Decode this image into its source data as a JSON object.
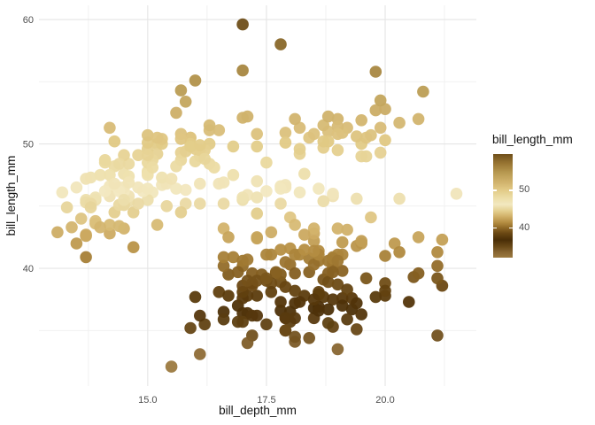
{
  "figure": {
    "background": "#ffffff",
    "colors": {
      "grid_major": "#e5e5e5",
      "grid_minor": "#f1f1f1",
      "axis_text": "#4d4d4d",
      "title_text": "#111111"
    }
  },
  "chart_data": {
    "type": "scatter",
    "title": "",
    "xlabel": "bill_depth_mm",
    "ylabel": "bill_length_mm",
    "xlim": [
      12.71,
      21.92
    ],
    "ylim": [
      30.54,
      61.14
    ],
    "x_ticks": [
      15.0,
      17.5,
      20.0
    ],
    "x_tick_labels": [
      "15.0",
      "17.5",
      "20.0"
    ],
    "y_ticks": [
      40,
      50,
      60
    ],
    "y_tick_labels": [
      "40",
      "50",
      "60"
    ],
    "x_minor_ticks": [
      13.75,
      16.25,
      18.75,
      21.25
    ],
    "y_minor_ticks": [
      35,
      45,
      55
    ],
    "grid": true,
    "point_radius": 6.8,
    "point_opacity": 0.95,
    "legend": {
      "title": "bill_length_mm",
      "position": "right",
      "range": [
        32.1,
        59.6
      ],
      "ticks": [
        50,
        40
      ],
      "tick_labels": [
        "50",
        "40"
      ]
    },
    "color_scale": {
      "field": "bill_length_mm",
      "stops": [
        [
          32.1,
          "#9c7a40"
        ],
        [
          33.5,
          "#886632"
        ],
        [
          35.0,
          "#6a4a18"
        ],
        [
          36.8,
          "#4a2e07"
        ],
        [
          38.5,
          "#684612"
        ],
        [
          40.0,
          "#8f6826"
        ],
        [
          41.5,
          "#b68f43"
        ],
        [
          43.0,
          "#d0af67"
        ],
        [
          44.5,
          "#e4cf8f"
        ],
        [
          46.2,
          "#f2e8c0"
        ],
        [
          48.0,
          "#ecdda6"
        ],
        [
          50.0,
          "#e2cb87"
        ],
        [
          52.0,
          "#d2b46e"
        ],
        [
          54.5,
          "#b99b52"
        ],
        [
          57.0,
          "#9a7734"
        ],
        [
          59.6,
          "#6f4f1a"
        ]
      ]
    },
    "series_note": "points are [bill_depth_mm, bill_length_mm]; color encodes bill_length_mm",
    "points": [
      [
        18.7,
        39.1
      ],
      [
        17.4,
        39.5
      ],
      [
        18.0,
        40.3
      ],
      [
        19.3,
        36.7
      ],
      [
        20.6,
        39.3
      ],
      [
        17.8,
        38.9
      ],
      [
        19.6,
        39.2
      ],
      [
        18.1,
        34.1
      ],
      [
        20.2,
        42.0
      ],
      [
        17.1,
        37.8
      ],
      [
        17.3,
        37.8
      ],
      [
        17.6,
        41.1
      ],
      [
        21.2,
        38.6
      ],
      [
        21.1,
        34.6
      ],
      [
        17.8,
        36.6
      ],
      [
        19.0,
        38.7
      ],
      [
        20.7,
        42.5
      ],
      [
        18.4,
        34.4
      ],
      [
        21.5,
        46.0
      ],
      [
        18.3,
        37.8
      ],
      [
        18.7,
        37.7
      ],
      [
        19.2,
        35.9
      ],
      [
        18.1,
        38.2
      ],
      [
        17.2,
        38.8
      ],
      [
        18.9,
        35.3
      ],
      [
        18.6,
        40.6
      ],
      [
        17.9,
        40.5
      ],
      [
        18.6,
        37.9
      ],
      [
        18.9,
        40.5
      ],
      [
        16.7,
        39.5
      ],
      [
        18.1,
        37.2
      ],
      [
        17.8,
        39.5
      ],
      [
        18.9,
        40.9
      ],
      [
        17.0,
        36.4
      ],
      [
        21.1,
        39.2
      ],
      [
        20.0,
        38.8
      ],
      [
        18.5,
        42.2
      ],
      [
        19.3,
        37.6
      ],
      [
        19.1,
        39.8
      ],
      [
        18.0,
        36.5
      ],
      [
        18.4,
        40.8
      ],
      [
        18.5,
        36.0
      ],
      [
        19.7,
        44.1
      ],
      [
        16.9,
        37.0
      ],
      [
        18.8,
        39.6
      ],
      [
        19.0,
        41.1
      ],
      [
        18.9,
        37.5
      ],
      [
        17.9,
        36.0
      ],
      [
        21.2,
        42.3
      ],
      [
        17.7,
        39.6
      ],
      [
        18.9,
        40.1
      ],
      [
        17.9,
        35.0
      ],
      [
        19.5,
        42.0
      ],
      [
        18.1,
        34.5
      ],
      [
        18.6,
        41.4
      ],
      [
        17.5,
        39.0
      ],
      [
        18.8,
        40.6
      ],
      [
        16.6,
        36.5
      ],
      [
        19.1,
        37.6
      ],
      [
        16.9,
        35.7
      ],
      [
        21.1,
        41.3
      ],
      [
        17.0,
        37.6
      ],
      [
        18.2,
        41.1
      ],
      [
        17.1,
        36.4
      ],
      [
        18.0,
        41.6
      ],
      [
        16.2,
        35.5
      ],
      [
        19.1,
        41.1
      ],
      [
        16.6,
        35.9
      ],
      [
        19.4,
        41.8
      ],
      [
        19.0,
        33.5
      ],
      [
        18.4,
        39.7
      ],
      [
        17.2,
        39.6
      ],
      [
        18.9,
        45.8
      ],
      [
        17.5,
        35.5
      ],
      [
        18.5,
        42.8
      ],
      [
        16.8,
        40.9
      ],
      [
        19.4,
        37.2
      ],
      [
        16.1,
        36.2
      ],
      [
        19.1,
        42.1
      ],
      [
        17.2,
        34.6
      ],
      [
        17.6,
        42.9
      ],
      [
        18.8,
        36.7
      ],
      [
        19.4,
        35.1
      ],
      [
        17.8,
        37.3
      ],
      [
        20.3,
        41.3
      ],
      [
        19.5,
        36.3
      ],
      [
        18.6,
        36.9
      ],
      [
        19.2,
        38.3
      ],
      [
        18.8,
        38.9
      ],
      [
        18.0,
        35.7
      ],
      [
        18.1,
        41.1
      ],
      [
        17.1,
        34.0
      ],
      [
        18.1,
        39.6
      ],
      [
        17.3,
        36.2
      ],
      [
        18.9,
        40.8
      ],
      [
        18.6,
        38.1
      ],
      [
        18.5,
        40.3
      ],
      [
        16.1,
        33.1
      ],
      [
        18.5,
        43.2
      ],
      [
        17.9,
        35.0
      ],
      [
        20.0,
        41.0
      ],
      [
        16.0,
        37.7
      ],
      [
        20.0,
        37.8
      ],
      [
        18.6,
        37.9
      ],
      [
        18.9,
        39.7
      ],
      [
        17.2,
        38.6
      ],
      [
        20.0,
        38.2
      ],
      [
        17.0,
        38.1
      ],
      [
        19.0,
        43.2
      ],
      [
        16.5,
        38.1
      ],
      [
        20.3,
        45.6
      ],
      [
        17.7,
        39.7
      ],
      [
        19.5,
        42.2
      ],
      [
        20.7,
        39.6
      ],
      [
        18.3,
        42.7
      ],
      [
        17.0,
        38.6
      ],
      [
        20.5,
        37.3
      ],
      [
        17.0,
        35.7
      ],
      [
        18.6,
        41.1
      ],
      [
        17.2,
        36.2
      ],
      [
        19.8,
        37.7
      ],
      [
        17.0,
        40.2
      ],
      [
        18.5,
        41.4
      ],
      [
        15.9,
        35.2
      ],
      [
        19.0,
        40.6
      ],
      [
        17.6,
        38.8
      ],
      [
        18.3,
        41.5
      ],
      [
        17.1,
        39.0
      ],
      [
        18.0,
        44.1
      ],
      [
        17.9,
        38.5
      ],
      [
        19.2,
        43.1
      ],
      [
        18.5,
        36.8
      ],
      [
        18.5,
        37.5
      ],
      [
        17.6,
        38.1
      ],
      [
        17.5,
        41.1
      ],
      [
        18.8,
        35.6
      ],
      [
        16.6,
        40.2
      ],
      [
        19.1,
        37.0
      ],
      [
        16.9,
        39.7
      ],
      [
        21.1,
        40.2
      ],
      [
        17.0,
        40.6
      ],
      [
        15.5,
        32.1
      ],
      [
        17.1,
        40.7
      ],
      [
        18.2,
        37.3
      ],
      [
        17.3,
        39.0
      ],
      [
        17.5,
        39.2
      ],
      [
        18.6,
        36.6
      ],
      [
        17.9,
        36.0
      ],
      [
        16.7,
        37.8
      ],
      [
        18.1,
        36.0
      ],
      [
        17.8,
        41.5
      ],
      [
        13.2,
        46.1
      ],
      [
        16.3,
        50.0
      ],
      [
        14.1,
        48.7
      ],
      [
        15.2,
        50.0
      ],
      [
        14.5,
        47.6
      ],
      [
        13.5,
        46.5
      ],
      [
        14.6,
        45.4
      ],
      [
        15.3,
        46.7
      ],
      [
        13.4,
        43.3
      ],
      [
        15.4,
        46.8
      ],
      [
        13.7,
        40.9
      ],
      [
        16.1,
        49.0
      ],
      [
        13.7,
        45.5
      ],
      [
        14.6,
        48.4
      ],
      [
        14.6,
        45.8
      ],
      [
        15.7,
        49.3
      ],
      [
        13.5,
        42.0
      ],
      [
        15.2,
        49.2
      ],
      [
        14.5,
        46.2
      ],
      [
        15.1,
        48.7
      ],
      [
        14.3,
        50.2
      ],
      [
        14.5,
        45.1
      ],
      [
        14.5,
        46.5
      ],
      [
        15.8,
        46.3
      ],
      [
        13.1,
        42.9
      ],
      [
        15.1,
        46.1
      ],
      [
        14.3,
        44.5
      ],
      [
        15.0,
        47.8
      ],
      [
        14.3,
        48.2
      ],
      [
        15.3,
        50.0
      ],
      [
        15.3,
        47.3
      ],
      [
        14.2,
        42.8
      ],
      [
        14.5,
        45.1
      ],
      [
        17.0,
        59.6
      ],
      [
        14.8,
        49.1
      ],
      [
        16.3,
        48.4
      ],
      [
        13.7,
        42.6
      ],
      [
        17.3,
        44.4
      ],
      [
        13.6,
        44.0
      ],
      [
        15.7,
        48.7
      ],
      [
        13.7,
        42.7
      ],
      [
        16.0,
        49.6
      ],
      [
        13.7,
        45.3
      ],
      [
        15.0,
        49.6
      ],
      [
        15.9,
        50.5
      ],
      [
        13.9,
        43.6
      ],
      [
        13.9,
        45.5
      ],
      [
        15.9,
        50.5
      ],
      [
        13.3,
        44.9
      ],
      [
        15.8,
        45.2
      ],
      [
        14.2,
        46.6
      ],
      [
        14.1,
        48.5
      ],
      [
        14.4,
        45.1
      ],
      [
        15.0,
        50.1
      ],
      [
        14.4,
        46.5
      ],
      [
        15.4,
        45.0
      ],
      [
        13.9,
        43.8
      ],
      [
        15.0,
        45.5
      ],
      [
        14.5,
        43.2
      ],
      [
        15.3,
        50.4
      ],
      [
        13.8,
        45.3
      ],
      [
        14.9,
        46.2
      ],
      [
        13.9,
        45.7
      ],
      [
        15.7,
        54.3
      ],
      [
        14.2,
        45.8
      ],
      [
        16.8,
        49.8
      ],
      [
        14.4,
        46.2
      ],
      [
        16.2,
        49.5
      ],
      [
        14.2,
        43.5
      ],
      [
        15.0,
        50.7
      ],
      [
        15.0,
        47.7
      ],
      [
        15.6,
        46.4
      ],
      [
        15.6,
        48.2
      ],
      [
        14.8,
        46.5
      ],
      [
        15.0,
        46.4
      ],
      [
        16.0,
        48.6
      ],
      [
        14.2,
        47.5
      ],
      [
        16.3,
        51.1
      ],
      [
        13.8,
        45.2
      ],
      [
        16.1,
        45.2
      ],
      [
        14.5,
        49.1
      ],
      [
        15.6,
        52.5
      ],
      [
        14.6,
        47.4
      ],
      [
        15.9,
        50.0
      ],
      [
        13.8,
        44.9
      ],
      [
        17.3,
        50.8
      ],
      [
        14.4,
        43.4
      ],
      [
        14.2,
        51.3
      ],
      [
        14.0,
        47.5
      ],
      [
        17.0,
        52.1
      ],
      [
        15.0,
        47.5
      ],
      [
        17.1,
        52.2
      ],
      [
        14.5,
        45.5
      ],
      [
        16.1,
        49.5
      ],
      [
        14.7,
        44.5
      ],
      [
        15.7,
        50.8
      ],
      [
        15.8,
        49.4
      ],
      [
        14.6,
        46.9
      ],
      [
        14.4,
        48.4
      ],
      [
        16.5,
        51.1
      ],
      [
        15.0,
        48.5
      ],
      [
        17.0,
        55.9
      ],
      [
        15.5,
        47.2
      ],
      [
        15.0,
        49.1
      ],
      [
        13.8,
        47.3
      ],
      [
        16.1,
        46.8
      ],
      [
        14.7,
        41.7
      ],
      [
        15.8,
        53.4
      ],
      [
        14.0,
        43.3
      ],
      [
        15.1,
        48.1
      ],
      [
        15.2,
        50.5
      ],
      [
        15.9,
        49.8
      ],
      [
        15.2,
        43.5
      ],
      [
        16.3,
        51.5
      ],
      [
        14.1,
        46.2
      ],
      [
        16.0,
        55.1
      ],
      [
        15.7,
        44.5
      ],
      [
        16.2,
        48.8
      ],
      [
        13.7,
        47.2
      ],
      [
        14.3,
        46.8
      ],
      [
        15.7,
        50.4
      ],
      [
        14.8,
        45.2
      ],
      [
        16.1,
        49.9
      ],
      [
        17.9,
        46.5
      ],
      [
        19.5,
        50.0
      ],
      [
        19.2,
        51.3
      ],
      [
        18.7,
        45.4
      ],
      [
        19.8,
        52.7
      ],
      [
        17.8,
        45.2
      ],
      [
        18.2,
        46.1
      ],
      [
        18.2,
        51.3
      ],
      [
        18.9,
        46.0
      ],
      [
        19.9,
        51.3
      ],
      [
        17.8,
        46.6
      ],
      [
        20.3,
        51.7
      ],
      [
        17.3,
        47.0
      ],
      [
        18.1,
        52.0
      ],
      [
        17.1,
        45.9
      ],
      [
        19.6,
        50.5
      ],
      [
        20.0,
        50.3
      ],
      [
        17.8,
        58.0
      ],
      [
        18.6,
        46.4
      ],
      [
        18.2,
        49.2
      ],
      [
        17.3,
        42.4
      ],
      [
        17.5,
        48.5
      ],
      [
        16.6,
        43.2
      ],
      [
        19.4,
        50.6
      ],
      [
        17.9,
        46.7
      ],
      [
        19.0,
        52.0
      ],
      [
        18.4,
        50.5
      ],
      [
        19.0,
        49.5
      ],
      [
        17.8,
        46.4
      ],
      [
        20.0,
        52.8
      ],
      [
        16.6,
        40.9
      ],
      [
        20.8,
        54.2
      ],
      [
        16.7,
        42.5
      ],
      [
        18.8,
        51.0
      ],
      [
        18.7,
        49.7
      ],
      [
        16.8,
        47.5
      ],
      [
        18.3,
        47.6
      ],
      [
        20.7,
        52.0
      ],
      [
        16.6,
        46.9
      ],
      [
        19.9,
        53.5
      ],
      [
        19.5,
        49.0
      ],
      [
        17.5,
        46.2
      ],
      [
        19.1,
        50.9
      ],
      [
        17.0,
        45.5
      ],
      [
        17.9,
        50.9
      ],
      [
        18.5,
        50.8
      ],
      [
        17.9,
        50.1
      ],
      [
        19.6,
        49.0
      ],
      [
        18.7,
        51.5
      ],
      [
        17.3,
        49.8
      ],
      [
        16.4,
        48.1
      ],
      [
        19.0,
        51.4
      ],
      [
        17.3,
        45.7
      ],
      [
        19.7,
        50.7
      ],
      [
        17.3,
        42.5
      ],
      [
        18.8,
        52.2
      ],
      [
        16.6,
        45.2
      ],
      [
        19.9,
        49.3
      ],
      [
        18.8,
        50.2
      ],
      [
        19.4,
        45.6
      ],
      [
        19.5,
        51.9
      ],
      [
        16.5,
        46.8
      ],
      [
        17.0,
        45.7
      ],
      [
        19.8,
        55.8
      ],
      [
        18.1,
        43.5
      ],
      [
        18.2,
        49.6
      ],
      [
        19.0,
        50.8
      ],
      [
        18.7,
        50.2
      ]
    ]
  }
}
